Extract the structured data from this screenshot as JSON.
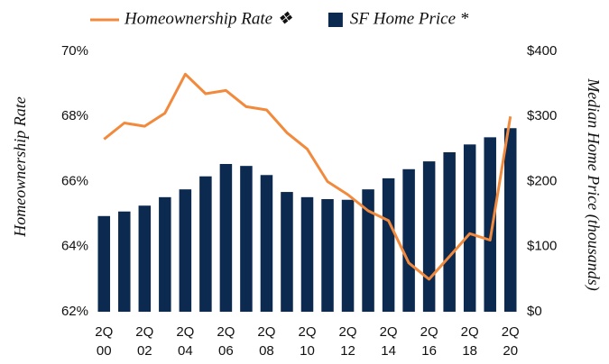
{
  "chart_data": {
    "type": "bar-line",
    "categories": [
      "2Q\n00",
      null,
      "2Q\n02",
      null,
      "2Q\n04",
      null,
      "2Q\n06",
      null,
      "2Q\n08",
      null,
      "2Q\n10",
      null,
      "2Q\n12",
      null,
      "2Q\n14",
      null,
      "2Q\n16",
      null,
      "2Q\n18",
      null,
      "2Q\n20"
    ],
    "series": [
      {
        "name": "Homeownership Rate ❖",
        "type": "line",
        "color": "#f28a3d",
        "axis": "y",
        "values": [
          67.3,
          67.8,
          67.7,
          68.1,
          69.3,
          68.7,
          68.8,
          68.3,
          68.2,
          67.5,
          67.0,
          66.0,
          65.6,
          65.1,
          64.8,
          63.5,
          63.0,
          63.7,
          64.4,
          64.2,
          68.0
        ]
      },
      {
        "name": "SF Home Price *",
        "type": "bar",
        "color": "#0c2a50",
        "axis": "y2",
        "values": [
          147,
          154,
          163,
          176,
          188,
          208,
          227,
          224,
          210,
          184,
          176,
          173,
          172,
          188,
          205,
          219,
          231,
          245,
          257,
          268,
          282
        ]
      }
    ],
    "y_label": "Homeownership Rate",
    "y2_label": "Median Home Price (thousands)",
    "ylim": [
      62,
      70
    ],
    "yticks": [
      {
        "value": 62,
        "label": "62%"
      },
      {
        "value": 64,
        "label": "64%"
      },
      {
        "value": 66,
        "label": "66%"
      },
      {
        "value": 68,
        "label": "68%"
      },
      {
        "value": 70,
        "label": "70%"
      }
    ],
    "y2lim": [
      0,
      400
    ],
    "y2ticks": [
      {
        "value": 0,
        "label": "$0"
      },
      {
        "value": 100,
        "label": "$100"
      },
      {
        "value": 200,
        "label": "$200"
      },
      {
        "value": 300,
        "label": "$300"
      },
      {
        "value": 400,
        "label": "$400"
      }
    ],
    "grid": false
  }
}
